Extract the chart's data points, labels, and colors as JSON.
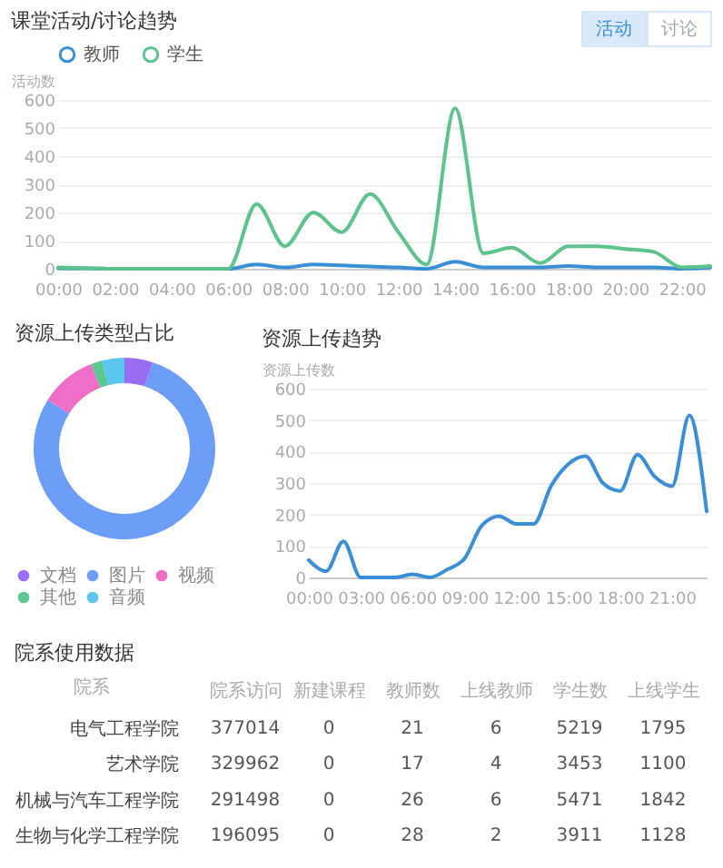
{
  "chart_data": [
    {
      "type": "line",
      "title": "课堂活动/讨论趋势",
      "ylabel": "活动数",
      "annotations": [
        "活动",
        "讨论"
      ],
      "legend": "top",
      "grid": "y",
      "marker": "none",
      "line_style": "solid",
      "x": [
        0,
        1,
        2,
        3,
        4,
        5,
        6,
        7,
        8,
        9,
        10,
        11,
        12,
        13,
        14,
        15,
        16,
        17,
        18,
        19,
        20,
        21,
        22,
        23
      ],
      "xlim": [
        0,
        23
      ],
      "xticks": [
        {
          "value": 0,
          "label": "00:00"
        },
        {
          "value": 2,
          "label": "02:00"
        },
        {
          "value": 4,
          "label": "04:00"
        },
        {
          "value": 6,
          "label": "06:00"
        },
        {
          "value": 8,
          "label": "08:00"
        },
        {
          "value": 10,
          "label": "10:00"
        },
        {
          "value": 12,
          "label": "12:00"
        },
        {
          "value": 14,
          "label": "14:00"
        },
        {
          "value": 16,
          "label": "16:00"
        },
        {
          "value": 18,
          "label": "18:00"
        },
        {
          "value": 20,
          "label": "20:00"
        },
        {
          "value": 22,
          "label": "22:00"
        }
      ],
      "ylim": [
        0,
        600
      ],
      "yticks": [
        0,
        100,
        200,
        300,
        400,
        500,
        600
      ],
      "series": [
        {
          "name": "教师",
          "color": "#3a8ed6",
          "values": [
            2,
            2,
            0,
            0,
            0,
            0,
            0,
            15,
            5,
            15,
            12,
            8,
            5,
            0,
            25,
            5,
            5,
            5,
            10,
            5,
            5,
            5,
            0,
            5
          ]
        },
        {
          "name": "学生",
          "color": "#5cc38c",
          "values": [
            5,
            2,
            0,
            0,
            0,
            0,
            0,
            230,
            80,
            200,
            130,
            265,
            130,
            15,
            570,
            55,
            75,
            20,
            80,
            80,
            70,
            60,
            5,
            10
          ]
        }
      ]
    },
    {
      "type": "donut",
      "title": "资源上传类型占比",
      "legend": "bottom",
      "categories": [
        "文档",
        "图片",
        "视频",
        "其他",
        "音频"
      ],
      "values": [
        5,
        79,
        10,
        2,
        4
      ],
      "colors": [
        "#9b6cf6",
        "#6b9cf6",
        "#ee6dc7",
        "#5cc690",
        "#5bc6ee"
      ]
    },
    {
      "type": "line",
      "title": "资源上传趋势",
      "ylabel": "资源上传数",
      "grid": "y",
      "marker": "none",
      "line_style": "solid",
      "x": [
        0,
        1,
        2,
        3,
        4,
        5,
        6,
        7,
        8,
        9,
        10,
        11,
        12,
        13,
        14,
        15,
        16,
        17,
        18,
        19,
        20,
        21,
        22,
        23
      ],
      "xlim": [
        0,
        23
      ],
      "xticks": [
        {
          "value": 0,
          "label": "00:00"
        },
        {
          "value": 3,
          "label": "03:00"
        },
        {
          "value": 6,
          "label": "06:00"
        },
        {
          "value": 9,
          "label": "09:00"
        },
        {
          "value": 12,
          "label": "12:00"
        },
        {
          "value": 15,
          "label": "15:00"
        },
        {
          "value": 18,
          "label": "18:00"
        },
        {
          "value": 21,
          "label": "21:00"
        }
      ],
      "ylim": [
        0,
        600
      ],
      "yticks": [
        0,
        100,
        200,
        300,
        400,
        500,
        600
      ],
      "series": [
        {
          "color": "#3a8ed6",
          "values": [
            55,
            20,
            115,
            0,
            0,
            0,
            10,
            0,
            25,
            60,
            165,
            195,
            170,
            170,
            290,
            360,
            385,
            300,
            275,
            390,
            320,
            290,
            515,
            210
          ]
        }
      ]
    },
    {
      "type": "other",
      "title": "院系使用数据",
      "ylabel": "院系",
      "data_labels": true,
      "categories": [
        "电气工程学院",
        "艺术学院",
        "机械与汽车工程学院",
        "生物与化学工程学院"
      ],
      "series": [
        {
          "name": "院系访问",
          "values": [
            377014,
            329962,
            291498,
            196095
          ]
        },
        {
          "name": "新建课程",
          "values": [
            0,
            0,
            0,
            0
          ]
        },
        {
          "name": "教师数",
          "values": [
            21,
            17,
            26,
            28
          ]
        },
        {
          "name": "上线教师",
          "values": [
            6,
            4,
            6,
            2
          ]
        },
        {
          "name": "学生数",
          "values": [
            5219,
            3453,
            5471,
            3911
          ]
        },
        {
          "name": "上线学生",
          "values": [
            1795,
            1100,
            1842,
            1128
          ]
        }
      ]
    }
  ]
}
